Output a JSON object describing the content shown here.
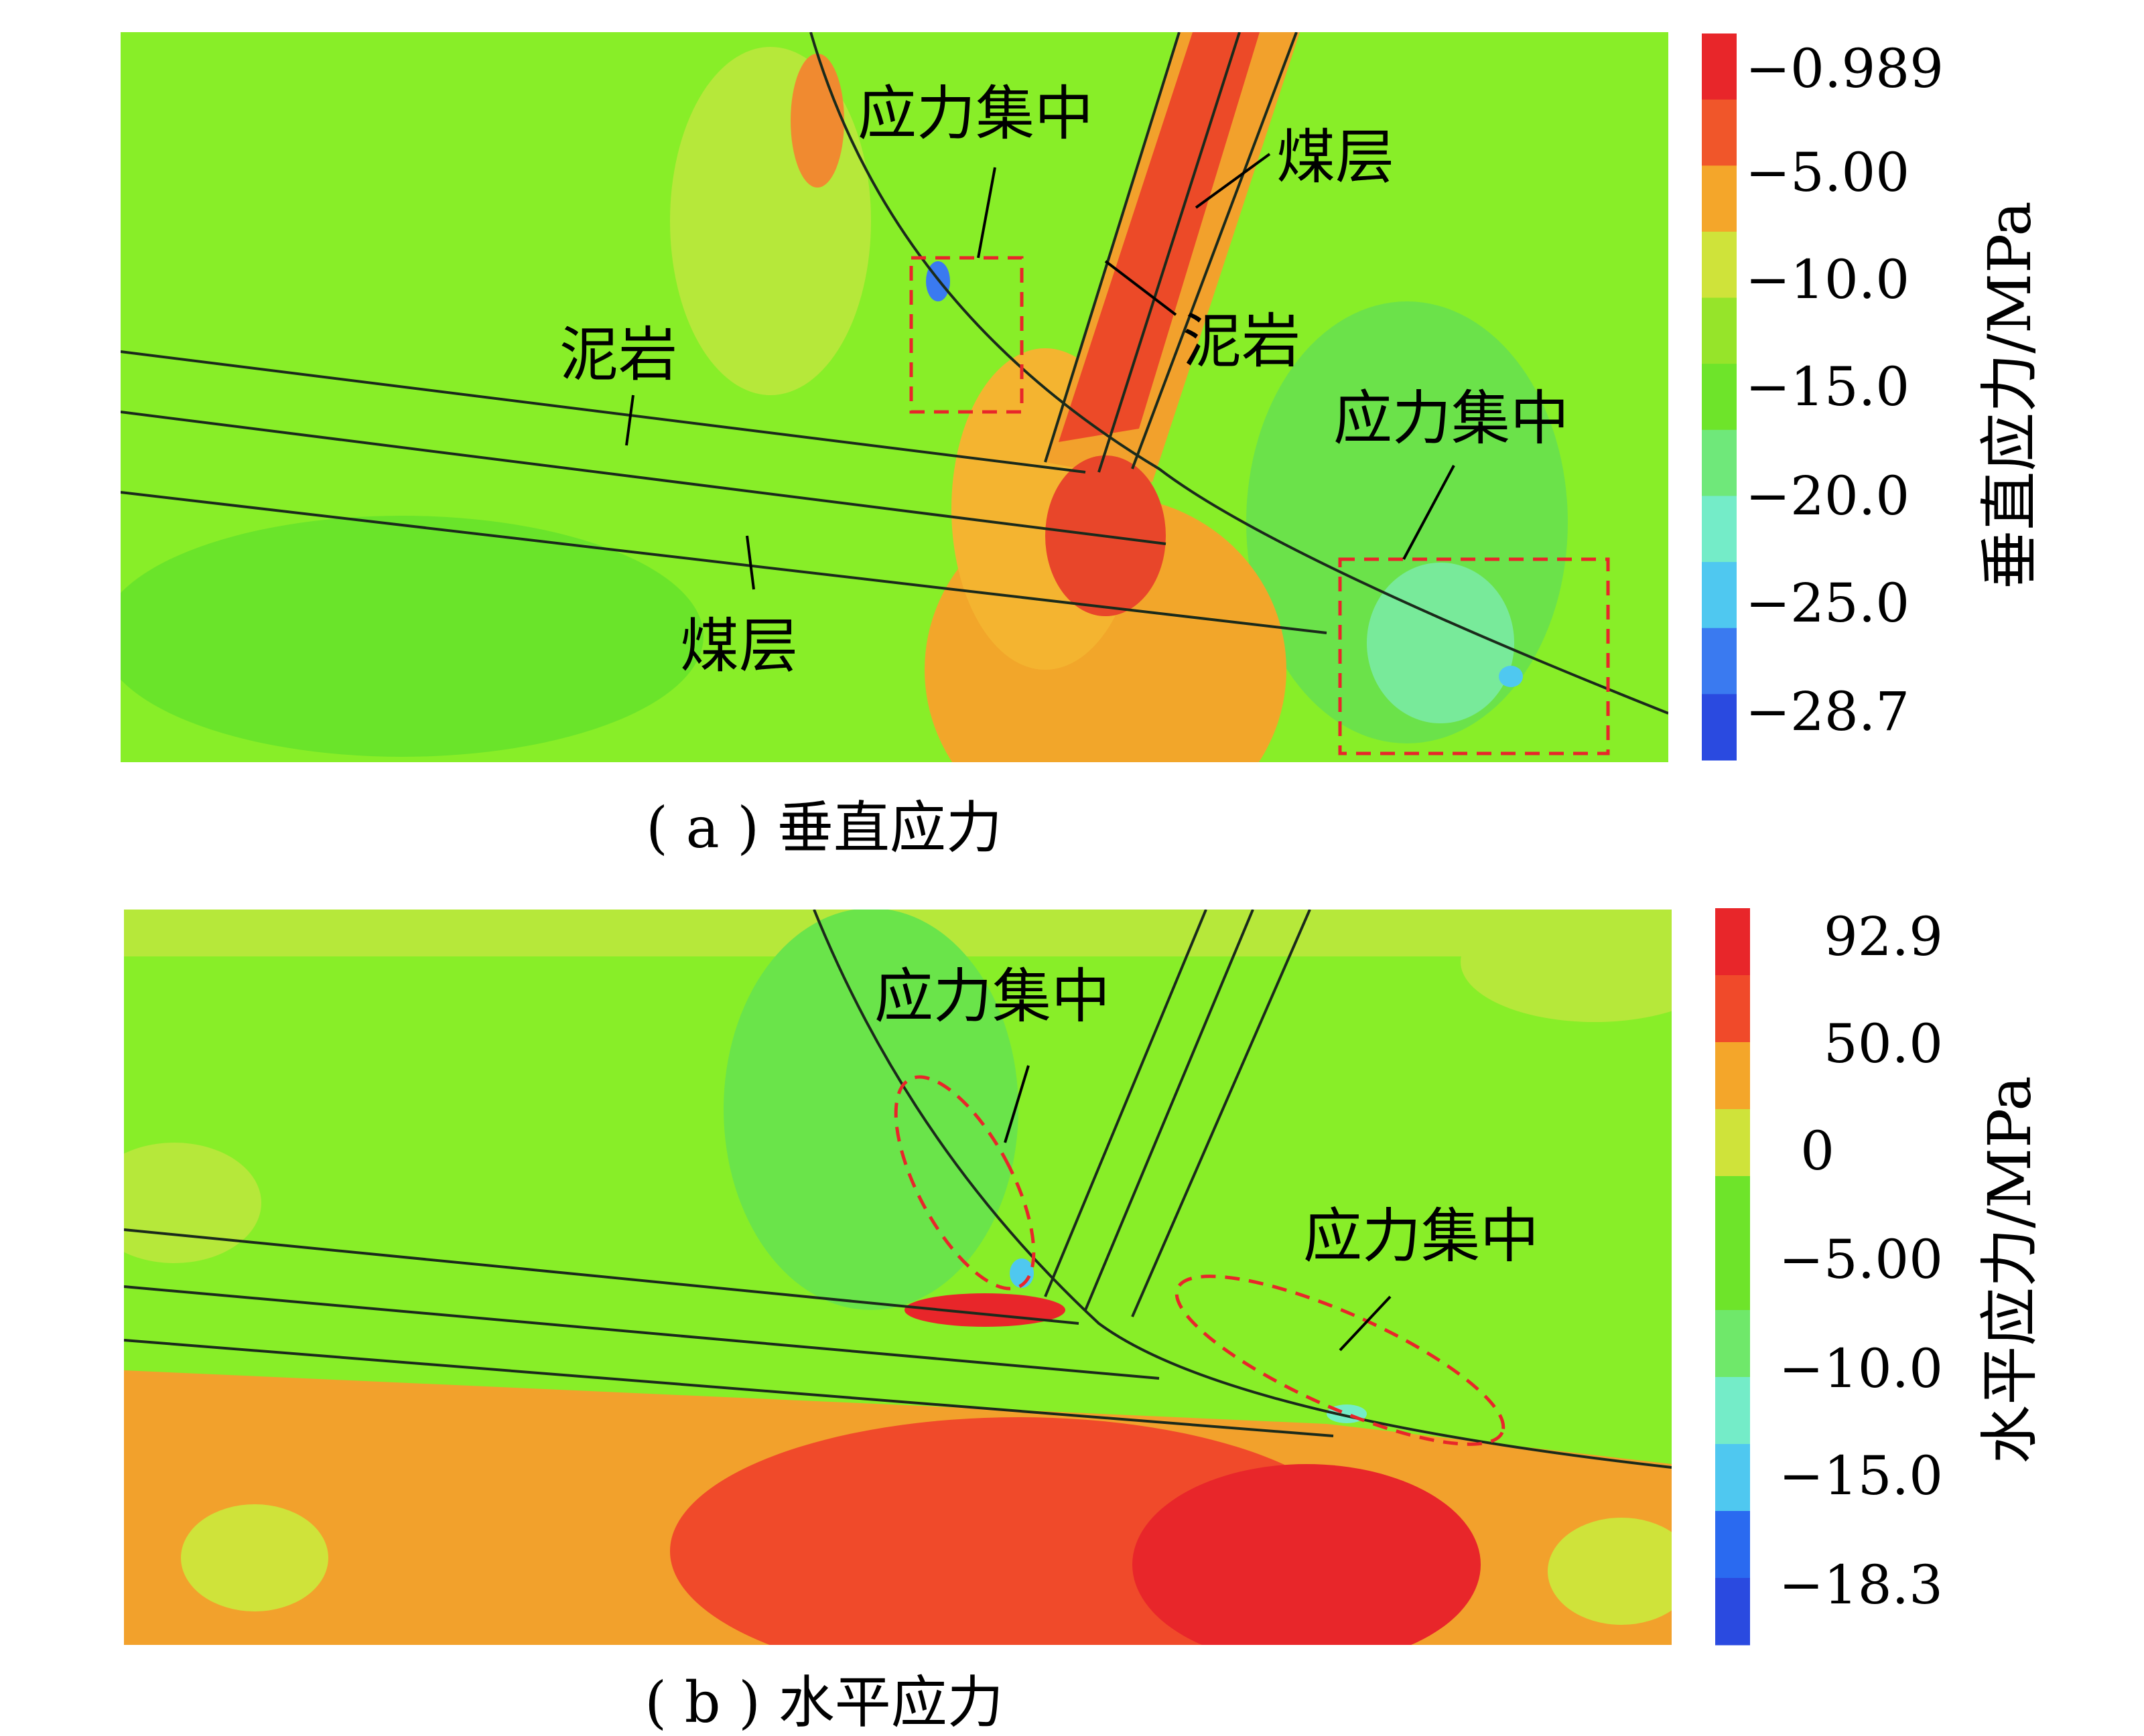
{
  "panel_a": {
    "caption": "( a ) 垂直应力",
    "colorbar_title": "垂直应力/MPa",
    "ticks": [
      "−0.989",
      "−5.00",
      "−10.0",
      "−15.0",
      "−20.0",
      "−25.0",
      "−28.7"
    ],
    "colorbar_colors": [
      "#e8262a",
      "#f0562a",
      "#f4a62a",
      "#cfe33a",
      "#96e42a",
      "#6ee42a",
      "#6fe87a",
      "#74ecc8",
      "#4fc8f0",
      "#3a7af0",
      "#2a4ae0"
    ],
    "labels": {
      "stress_top": "应力集中",
      "coal_upper": "煤层",
      "mudstone_upper": "泥岩",
      "mudstone_left": "泥岩",
      "coal_lower": "煤层",
      "stress_right": "应力集中"
    }
  },
  "panel_b": {
    "caption": "( b ) 水平应力",
    "colorbar_title": "水平应力/MPa",
    "ticks": [
      "92.9",
      "50.0",
      "0",
      "−5.00",
      "−10.0",
      "−15.0",
      "−18.3"
    ],
    "colorbar_colors": [
      "#e8262a",
      "#f04a2a",
      "#f4a62a",
      "#cfe33a",
      "#6ee42a",
      "#6ee42a",
      "#6fe86a",
      "#74ecc8",
      "#4fc8f0",
      "#2a6af0",
      "#2a4ae0"
    ],
    "labels": {
      "stress_top": "应力集中",
      "stress_right": "应力集中"
    }
  }
}
